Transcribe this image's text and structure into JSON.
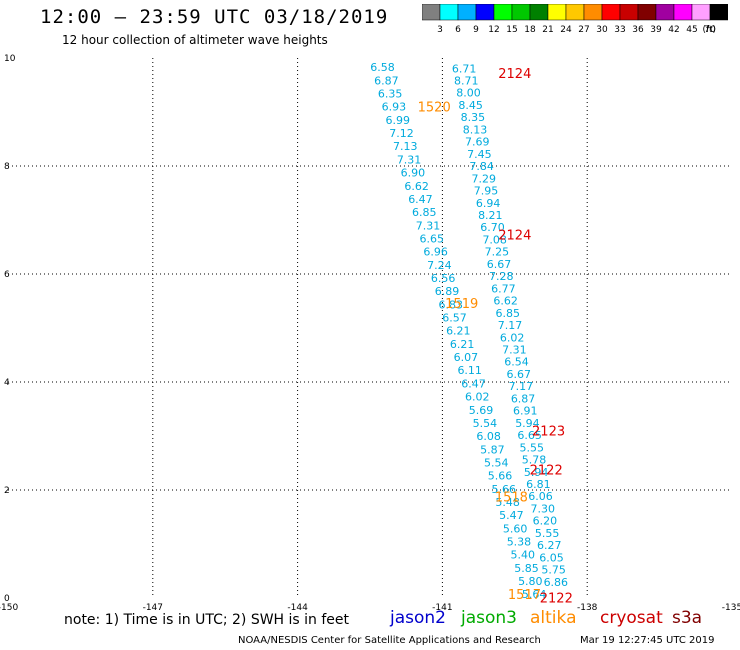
{
  "header": {
    "title": "12:00 – 23:59 UTC 03/18/2019",
    "subtitle": "12 hour collection of altimeter wave heights"
  },
  "legend": {
    "unit": "(ft)",
    "bins": [
      {
        "label": "3",
        "color": "#808080"
      },
      {
        "label": "6",
        "color": "#00ffff"
      },
      {
        "label": "9",
        "color": "#00b0ff"
      },
      {
        "label": "12",
        "color": "#0000ff"
      },
      {
        "label": "15",
        "color": "#00ff00"
      },
      {
        "label": "18",
        "color": "#00c800"
      },
      {
        "label": "21",
        "color": "#008000"
      },
      {
        "label": "24",
        "color": "#ffff00"
      },
      {
        "label": "27",
        "color": "#ffc800"
      },
      {
        "label": "30",
        "color": "#ff8c00"
      },
      {
        "label": "33",
        "color": "#ff0000"
      },
      {
        "label": "36",
        "color": "#c80000"
      },
      {
        "label": "39",
        "color": "#800000"
      },
      {
        "label": "42",
        "color": "#a000a0"
      },
      {
        "label": "45",
        "color": "#ff00ff"
      },
      {
        "label": "70",
        "color": "#ffa0ff"
      },
      {
        "label": "",
        "color": "#000000"
      }
    ]
  },
  "footer": {
    "note": "note:  1) Time is in UTC;  2) SWH is in feet",
    "satellites": [
      {
        "name": "jason2",
        "color": "#0000cc"
      },
      {
        "name": "jason3",
        "color": "#00aa00"
      },
      {
        "name": "altika",
        "color": "#ff8c00"
      },
      {
        "name": "cryosat",
        "color": "#cc0000"
      },
      {
        "name": "s3a",
        "color": "#800000"
      }
    ],
    "credit": "NOAA/NESDIS Center for Satellite Applications and Research",
    "timestamp": "Mar 19 12:27:45 UTC 2019"
  },
  "colors": {
    "swh_text": "#00aadd",
    "time_orange": "#ff8c00",
    "time_red": "#dd0000"
  },
  "chart_data": {
    "type": "scatter",
    "xlim": [
      -150,
      -135
    ],
    "ylim": [
      0,
      10
    ],
    "x_ticks": [
      "-150",
      "-147",
      "-144",
      "-141",
      "-138",
      "-135"
    ],
    "y_ticks": [
      "0",
      "2",
      "4",
      "6",
      "8",
      "10"
    ],
    "grid": true,
    "track_a": {
      "x_start": -142.24,
      "y_start": 9.83,
      "x_end": -139.1,
      "y_end": 0.07,
      "values": [
        "6.58",
        "6.87",
        "6.35",
        "6.93",
        "6.99",
        "7.12",
        "7.13",
        "7.31",
        "6.90",
        "6.62",
        "6.47",
        "6.85",
        "7.31",
        "6.65",
        "6.96",
        "7.24",
        "6.56",
        "6.89",
        "6.83",
        "6.57",
        "6.21",
        "6.21",
        "6.07",
        "6.11",
        "6.47",
        "6.02",
        "5.69",
        "5.54",
        "6.08",
        "5.87",
        "5.54",
        "5.66",
        "5.66",
        "5.48",
        "5.47",
        "5.60",
        "5.38",
        "5.40",
        "5.85",
        "5.80",
        "5.64"
      ]
    },
    "track_b": {
      "x_start": -140.55,
      "y_start": 9.81,
      "x_end": -138.65,
      "y_end": 0.3,
      "values": [
        "6.71",
        "8.71",
        "8.00",
        "8.45",
        "8.35",
        "8.13",
        "7.69",
        "7.45",
        "7.84",
        "7.29",
        "7.95",
        "6.94",
        "8.21",
        "6.70",
        "7.08",
        "7.25",
        "6.67",
        "7.28",
        "6.77",
        "6.62",
        "6.85",
        "7.17",
        "6.02",
        "7.31",
        "6.54",
        "6.67",
        "7.17",
        "6.87",
        "6.91",
        "5.94",
        "6.65",
        "5.55",
        "5.78",
        "5.94",
        "6.81",
        "6.06",
        "7.30",
        "6.20",
        "5.55",
        "6.27",
        "6.05",
        "5.75",
        "6.86"
      ]
    },
    "time_labels": [
      {
        "text": "2124",
        "x": -139.5,
        "y": 9.72,
        "color": "red"
      },
      {
        "text": "1520",
        "x": -141.17,
        "y": 9.1,
        "color": "orange"
      },
      {
        "text": "2124",
        "x": -139.5,
        "y": 6.73,
        "color": "red"
      },
      {
        "text": "1519",
        "x": -140.6,
        "y": 5.46,
        "color": "orange"
      },
      {
        "text": "2123",
        "x": -138.8,
        "y": 3.1,
        "color": "red"
      },
      {
        "text": "2122",
        "x": -138.85,
        "y": 2.38,
        "color": "red"
      },
      {
        "text": "1518",
        "x": -139.57,
        "y": 1.88,
        "color": "orange"
      },
      {
        "text": "1517",
        "x": -139.3,
        "y": 0.07,
        "color": "orange"
      },
      {
        "text": "2122",
        "x": -138.64,
        "y": 0.01,
        "color": "red"
      }
    ]
  }
}
